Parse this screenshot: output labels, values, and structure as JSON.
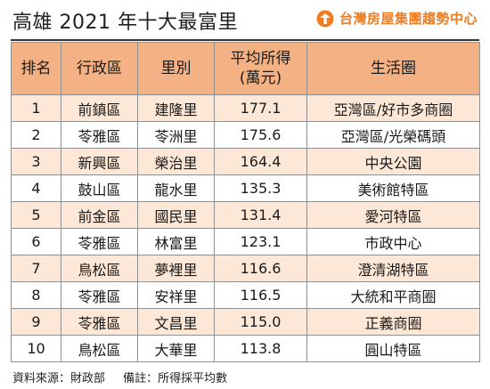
{
  "header": {
    "title": "高雄 2021 年十大最富里",
    "brand": "台灣房屋集團趨勢中心",
    "brand_color": "#ee7d22",
    "brand_icon": "house-logo-icon"
  },
  "table": {
    "columns": [
      "排名",
      "行政區",
      "里別",
      "平均所得\n(萬元)",
      "生活圈"
    ],
    "header_color": "#f4b183",
    "stripe_color": "#fde7d6",
    "rows": [
      [
        "1",
        "前鎮區",
        "建隆里",
        "177.1",
        "亞灣區/好市多商圈"
      ],
      [
        "2",
        "苓雅區",
        "苓洲里",
        "175.6",
        "亞灣區/光榮碼頭"
      ],
      [
        "3",
        "新興區",
        "榮治里",
        "164.4",
        "中央公園"
      ],
      [
        "4",
        "鼓山區",
        "龍水里",
        "135.3",
        "美術館特區"
      ],
      [
        "5",
        "前金區",
        "國民里",
        "131.4",
        "愛河特區"
      ],
      [
        "6",
        "苓雅區",
        "林富里",
        "123.1",
        "市政中心"
      ],
      [
        "7",
        "鳥松區",
        "夢裡里",
        "116.6",
        "澄清湖特區"
      ],
      [
        "8",
        "苓雅區",
        "安祥里",
        "116.5",
        "大統和平商圈"
      ],
      [
        "9",
        "苓雅區",
        "文昌里",
        "115.0",
        "正義商圈"
      ],
      [
        "10",
        "鳥松區",
        "大華里",
        "113.8",
        "圓山特區"
      ]
    ]
  },
  "footer": {
    "source": "資料來源：財政部",
    "note": "備註：所得採平均數"
  }
}
